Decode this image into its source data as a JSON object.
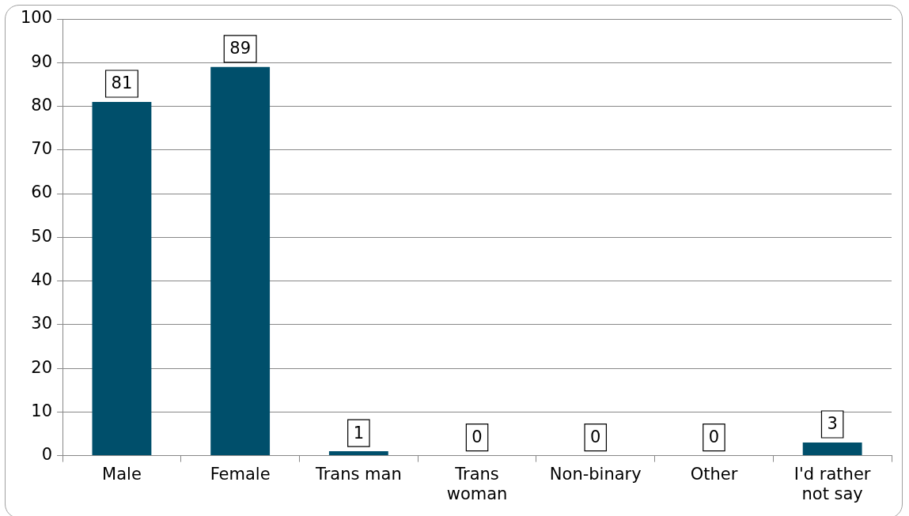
{
  "chart_data": {
    "type": "bar",
    "categories": [
      "Male",
      "Female",
      "Trans man",
      "Trans woman",
      "Non-binary",
      "Other",
      "I'd rather not say"
    ],
    "values": [
      81,
      89,
      1,
      0,
      0,
      0,
      3
    ],
    "color": "#004f6b",
    "ylim": [
      0,
      100
    ],
    "yticks": [
      0,
      10,
      20,
      30,
      40,
      50,
      60,
      70,
      80,
      90,
      100
    ],
    "grid": "y",
    "data_labels": true
  }
}
